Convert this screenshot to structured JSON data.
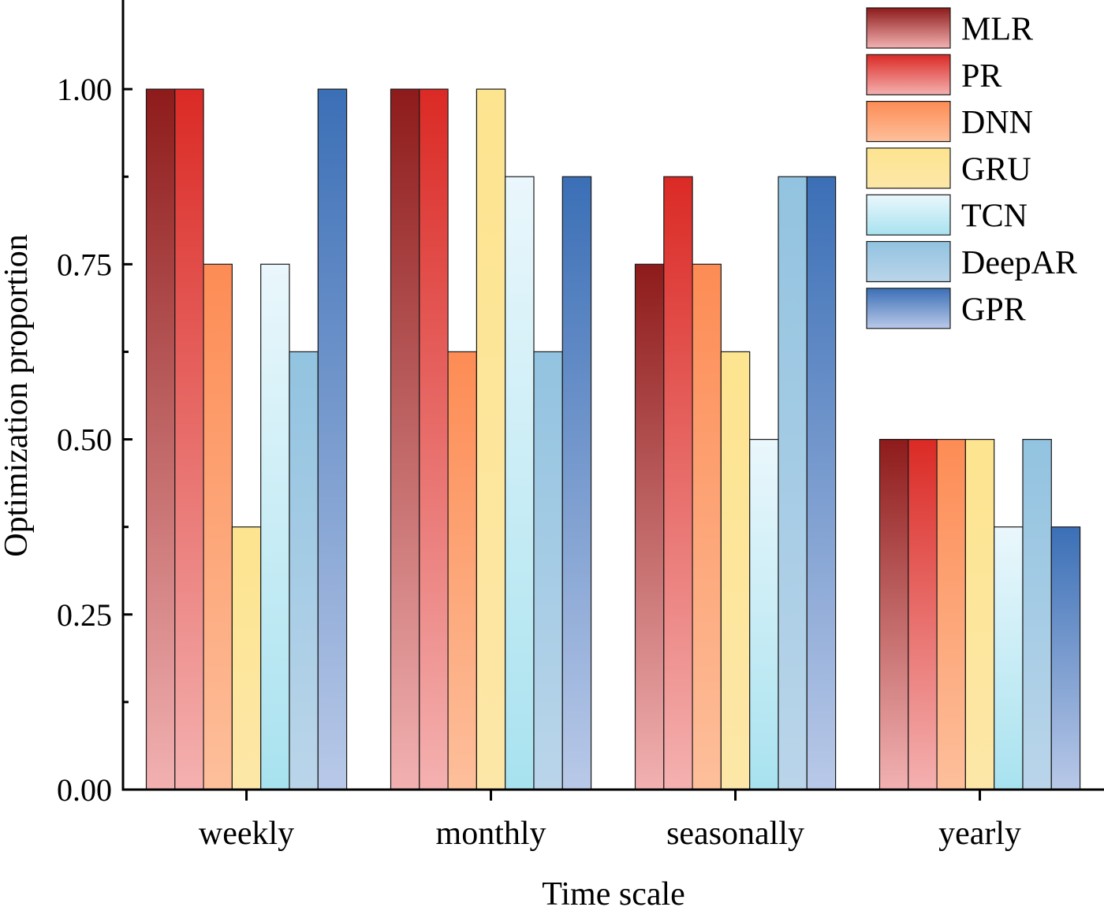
{
  "chart_data": {
    "type": "bar",
    "title": "",
    "xlabel": "Time scale",
    "ylabel": "Optimization proportion",
    "ylim": [
      0,
      1.125
    ],
    "yticks": [
      "0.00",
      "0.25",
      "0.50",
      "0.75",
      "1.00"
    ],
    "yticks_values": [
      0,
      0.25,
      0.5,
      0.75,
      1.0
    ],
    "grid": false,
    "legend_position": "top-right",
    "categories": [
      "weekly",
      "monthly",
      "seasonally",
      "yearly"
    ],
    "series": [
      {
        "name": "MLR",
        "values": [
          1.0,
          1.0,
          0.75,
          0.5
        ],
        "color_top": "#8e1b1b",
        "color_bottom": "#f2b1b1"
      },
      {
        "name": "PR",
        "values": [
          1.0,
          1.0,
          0.875,
          0.5
        ],
        "color_top": "#db2a25",
        "color_bottom": "#f4b1b0"
      },
      {
        "name": "DNN",
        "values": [
          0.75,
          0.625,
          0.75,
          0.5
        ],
        "color_top": "#fd8c55",
        "color_bottom": "#fdbf9b"
      },
      {
        "name": "GRU",
        "values": [
          0.375,
          1.0,
          0.625,
          0.5
        ],
        "color_top": "#fde48f",
        "color_bottom": "#fde7a8"
      },
      {
        "name": "TCN",
        "values": [
          0.75,
          0.875,
          0.5,
          0.375
        ],
        "color_top": "#eaf7fc",
        "color_bottom": "#a8e2ef"
      },
      {
        "name": "DeepAR",
        "values": [
          0.625,
          0.625,
          0.875,
          0.5
        ],
        "color_top": "#92c3e0",
        "color_bottom": "#bad5ea"
      },
      {
        "name": "GPR",
        "values": [
          1.0,
          0.875,
          0.875,
          0.375
        ],
        "color_top": "#3b6fb6",
        "color_bottom": "#b9c9e8"
      }
    ]
  }
}
